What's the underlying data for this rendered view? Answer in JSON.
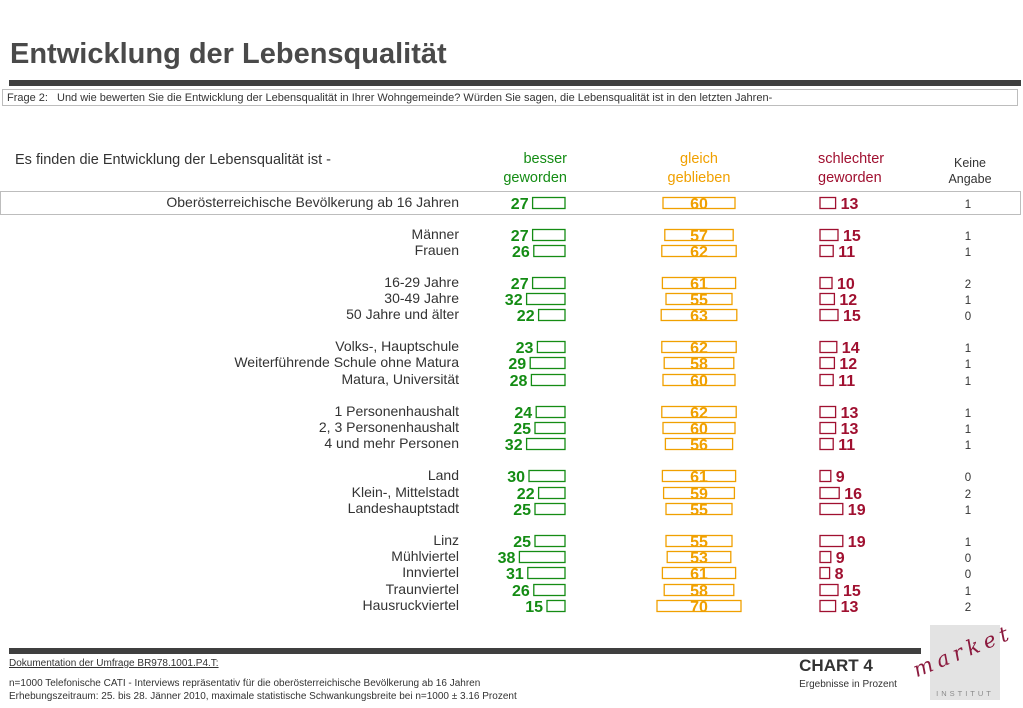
{
  "title": "Entwicklung der Lebensqualität",
  "question": {
    "label": "Frage 2:",
    "text": "Und wie bewerten Sie die Entwicklung der Lebensqualität in Ihrer Wohngemeinde? Würden Sie sagen, die Lebensqualität ist in den letzten Jahren-"
  },
  "heading": "Es finden die Entwicklung der Lebensqualität ist -",
  "columns": {
    "besser": [
      "besser",
      "geworden"
    ],
    "gleich": [
      "gleich",
      "geblieben"
    ],
    "schlechter": [
      "schlechter",
      "geworden"
    ],
    "keine": [
      "Keine",
      "Angabe"
    ]
  },
  "colors": {
    "besser": "#148c14",
    "gleich": "#f0a000",
    "schlechter": "#a01030",
    "keine": "#333333"
  },
  "chart_data": {
    "type": "bar",
    "categories": [
      "Oberösterreichische Bevölkerung ab 16 Jahren",
      "Männer",
      "Frauen",
      "16-29 Jahre",
      "30-49 Jahre",
      "50 Jahre und älter",
      "Volks-, Hauptschule",
      "Weiterführende Schule ohne Matura",
      "Matura, Universität",
      "1 Personenhaushalt",
      "2, 3 Personenhaushalt",
      "4 und mehr Personen",
      "Land",
      "Klein-, Mittelstadt",
      "Landeshauptstadt",
      "Linz",
      "Mühlviertel",
      "Innviertel",
      "Traunviertel",
      "Hausruckviertel"
    ],
    "series": [
      {
        "name": "besser geworden",
        "values": [
          27,
          27,
          26,
          27,
          32,
          22,
          23,
          29,
          28,
          24,
          25,
          32,
          30,
          22,
          25,
          25,
          38,
          31,
          26,
          15
        ]
      },
      {
        "name": "gleich geblieben",
        "values": [
          60,
          57,
          62,
          61,
          55,
          63,
          62,
          58,
          60,
          62,
          60,
          56,
          61,
          59,
          55,
          55,
          53,
          61,
          58,
          70
        ]
      },
      {
        "name": "schlechter geworden",
        "values": [
          13,
          15,
          11,
          10,
          12,
          15,
          14,
          12,
          11,
          13,
          13,
          11,
          9,
          16,
          19,
          19,
          9,
          8,
          15,
          13
        ]
      },
      {
        "name": "Keine Angabe",
        "values": [
          1,
          1,
          1,
          2,
          1,
          0,
          1,
          1,
          1,
          1,
          1,
          1,
          0,
          2,
          1,
          1,
          0,
          0,
          1,
          2
        ]
      }
    ],
    "unit": "Prozent"
  },
  "footer": {
    "doc": "Dokumentation der Umfrage BR978.1001.P4.T:",
    "line1": "n=1000 Telefonische CATI - Interviews repräsentativ für die oberösterreichische Bevölkerung ab 16 Jahren",
    "line2": "Erhebungszeitraum: 25. bis 28. Jänner 2010, maximale statistische Schwankungsbreite bei n=1000 ± 3.16 Prozent",
    "chart_no": "CHART 4",
    "chart_sub": "Ergebnisse in Prozent"
  },
  "logo": {
    "word": "market",
    "sub": "INSTITUT"
  }
}
